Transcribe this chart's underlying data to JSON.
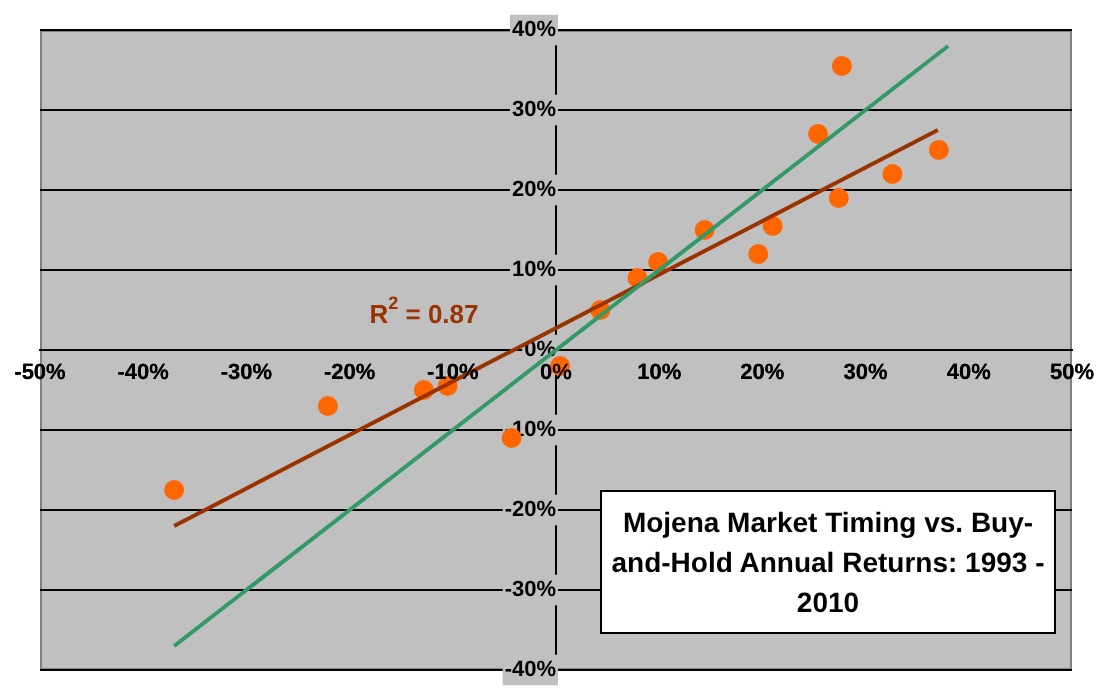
{
  "chart_data": {
    "type": "scatter",
    "title": "Mojena Market Timing vs. Buy-and-Hold Annual Returns: 1993 - 2010",
    "annotations": [
      "R$^{2}$ = 0.87"
    ],
    "x": [
      -37,
      -22.1,
      -12.8,
      -10.5,
      -4.3,
      0.4,
      4.3,
      7.9,
      9.9,
      14.4,
      19.6,
      21,
      25.4,
      27.4,
      27.7,
      32.6,
      37.1
    ],
    "series": [
      {
        "color": "#ff6600",
        "values": [
          -17.5,
          -7,
          -5,
          -4.5,
          -11,
          -2,
          5,
          9,
          11,
          15,
          12,
          15.5,
          27,
          19,
          35.5,
          22,
          25
        ]
      },
      {
        "type": "line",
        "color": "#339966",
        "marker": "none",
        "x": [
          -37,
          38
        ],
        "values": [
          -37,
          38
        ]
      },
      {
        "type": "line",
        "color": "#993300",
        "marker": "none",
        "x": [
          -37,
          37
        ],
        "values": [
          -22,
          27.5
        ]
      }
    ],
    "xlim": [
      -50,
      50
    ],
    "xticks": [
      {
        "value": -50,
        "label": "-50%"
      },
      {
        "value": -40,
        "label": "-40%"
      },
      {
        "value": -30,
        "label": "-30%"
      },
      {
        "value": -20,
        "label": "-20%"
      },
      {
        "value": -10,
        "label": "-10%"
      },
      {
        "value": 0,
        "label": "0%"
      },
      {
        "value": 10,
        "label": "10%"
      },
      {
        "value": 20,
        "label": "20%"
      },
      {
        "value": 30,
        "label": "30%"
      },
      {
        "value": 40,
        "label": "40%"
      },
      {
        "value": 50,
        "label": "50%"
      }
    ],
    "ylim": [
      -40,
      40
    ],
    "yticks": [
      {
        "value": -40,
        "label": "-40%"
      },
      {
        "value": -30,
        "label": "-30%"
      },
      {
        "value": -20,
        "label": "-20%"
      },
      {
        "value": -10,
        "label": "-10%"
      },
      {
        "value": 0,
        "label": "0%"
      },
      {
        "value": 10,
        "label": "10%"
      },
      {
        "value": 20,
        "label": "20%"
      },
      {
        "value": 30,
        "label": "30%"
      },
      {
        "value": 40,
        "label": "40%"
      }
    ],
    "grid": "y",
    "marker": "circle",
    "legend": false
  }
}
